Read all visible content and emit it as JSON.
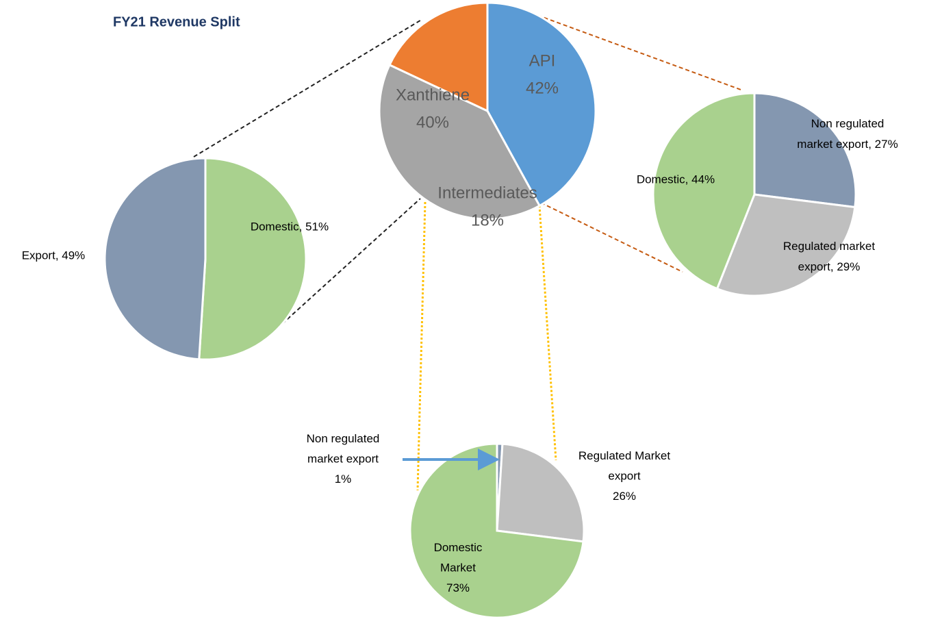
{
  "title": "FY21 Revenue Split",
  "chart_data": [
    {
      "type": "pie",
      "categories": [
        "API",
        "Xanthiene",
        "Intermediates"
      ],
      "values": [
        42,
        40,
        18
      ],
      "value_labels": [
        "42%",
        "40%",
        "18%"
      ],
      "colors": [
        "#5b9bd5",
        "#a5a5a5",
        "#ed7d31"
      ]
    },
    {
      "type": "pie",
      "values": [
        51,
        49
      ],
      "value_labels": [
        "Domestic, 51%",
        "Export, 49%"
      ],
      "colors": [
        "#a9d18e",
        "#8497b0"
      ]
    },
    {
      "type": "pie",
      "values": [
        27,
        29,
        44
      ],
      "value_labels": [
        "Non regulated\nmarket export, 27%",
        "Regulated market\nexport, 29%",
        "Domestic, 44%"
      ],
      "colors": [
        "#8497b0",
        "#bfbfbf",
        "#a9d18e"
      ]
    },
    {
      "type": "pie",
      "values": [
        1,
        26,
        73
      ],
      "value_labels": [
        "Non regulated\nmarket export\n1%",
        "Regulated Market\nexport\n26%",
        "Domestic\nMarket\n73%"
      ],
      "colors": [
        "#8497b0",
        "#bfbfbf",
        "#a9d18e"
      ]
    }
  ]
}
